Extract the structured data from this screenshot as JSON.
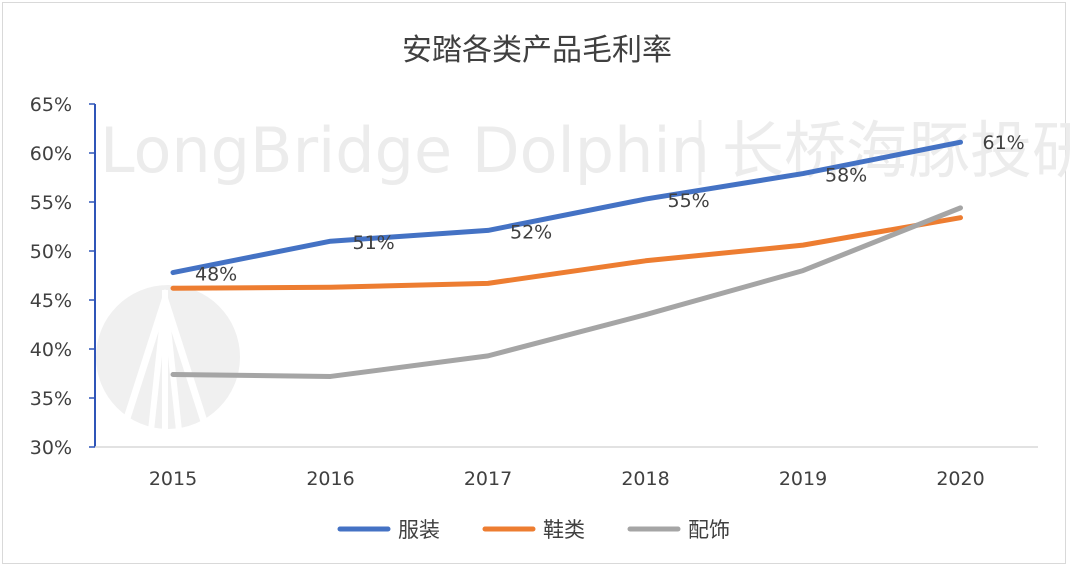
{
  "chart_data": {
    "type": "line",
    "title": "安踏各类产品毛利率",
    "categories": [
      "2015",
      "2016",
      "2017",
      "2018",
      "2019",
      "2020"
    ],
    "ylim": [
      30,
      65
    ],
    "ystep": 5,
    "y_tick_labels": [
      "30%",
      "35%",
      "40%",
      "45%",
      "50%",
      "55%",
      "60%",
      "65%"
    ],
    "legend_position": "bottom",
    "grid": false,
    "series": [
      {
        "name": "服装",
        "color": "#4472C4",
        "values": [
          47.8,
          51.0,
          52.1,
          55.3,
          57.9,
          61.1
        ],
        "labels": [
          "48%",
          "51%",
          "52%",
          "55%",
          "58%",
          "61%"
        ]
      },
      {
        "name": "鞋类",
        "color": "#ED7D31",
        "values": [
          46.2,
          46.3,
          46.7,
          49.0,
          50.6,
          53.4
        ]
      },
      {
        "name": "配饰",
        "color": "#A5A5A5",
        "values": [
          37.4,
          37.2,
          39.3,
          43.5,
          48.0,
          54.4
        ]
      }
    ]
  },
  "watermark": {
    "text": "LongBridge Dolphin",
    "cn_text": "长桥海豚投研"
  }
}
